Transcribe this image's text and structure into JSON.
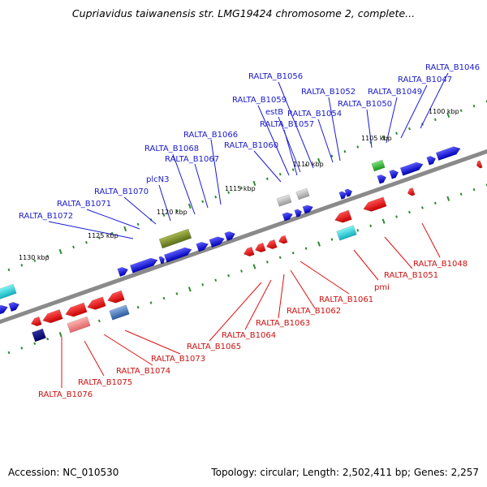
{
  "title": "Cupriavidus taiwanensis str. LMG19424 chromosome 2, complete...",
  "footer": {
    "accession": "Accession: NC_010530",
    "summary": "Topology: circular; Length: 2,502,411 bp; Genes: 2,257"
  },
  "colors": {
    "forward_gene": "#1a1ad8",
    "reverse_gene": "#e01010",
    "forward_label": "#1a1acc",
    "reverse_label": "#cc1010",
    "backbone": "#808080",
    "tick": "#2e8b2e"
  },
  "scale_labels": [
    "1100 kbp",
    "1105 kbp",
    "1110 kbp",
    "1115 kbp",
    "1120 kbp",
    "1125 kbp",
    "1130 kbp"
  ],
  "forward_genes": [
    "RALTA_B1046",
    "RALTA_B1047",
    "RALTA_B1049",
    "RALTA_B1050",
    "RALTA_B1052",
    "RALTA_B1054",
    "RALTA_B1056",
    "estB",
    "RALTA_B1057",
    "RALTA_B1059",
    "RALTA_B1060",
    "RALTA_B1066",
    "RALTA_B1067",
    "RALTA_B1068",
    "plcN3",
    "RALTA_B1070",
    "RALTA_B1071",
    "RALTA_B1072"
  ],
  "reverse_genes": [
    "RALTA_B1048",
    "RALTA_B1051",
    "pmi",
    "RALTA_B1061",
    "RALTA_B1062",
    "RALTA_B1063",
    "RALTA_B1064",
    "RALTA_B1065",
    "RALTA_B1073",
    "RALTA_B1074",
    "RALTA_B1075",
    "RALTA_B1076"
  ]
}
